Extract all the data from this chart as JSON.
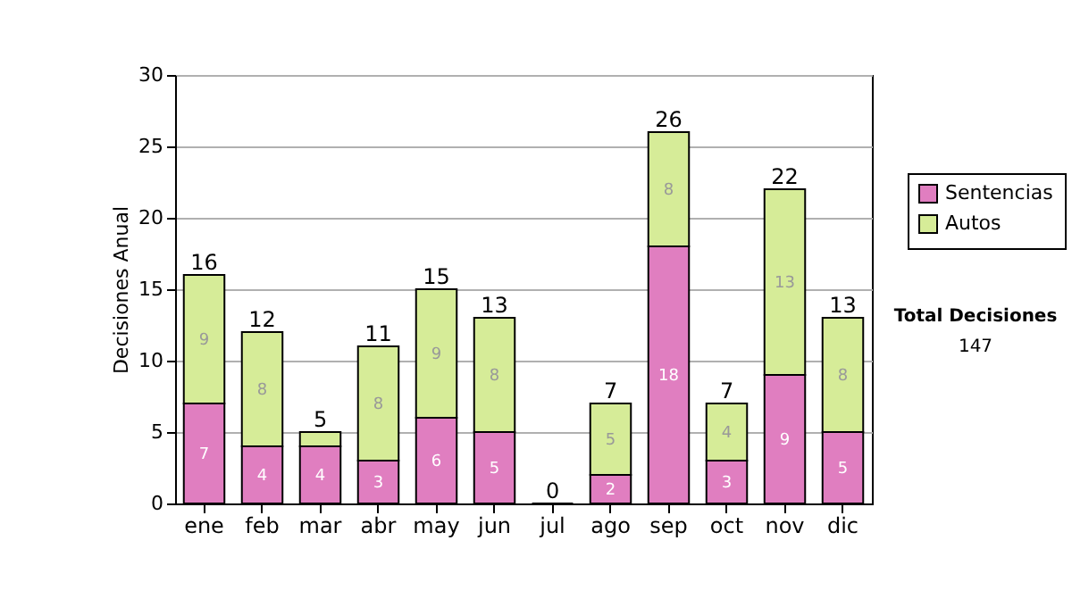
{
  "chart_data": {
    "type": "bar",
    "stacked": true,
    "ylabel": "Decisiones Anual",
    "categories": [
      "ene",
      "feb",
      "mar",
      "abr",
      "may",
      "jun",
      "jul",
      "ago",
      "sep",
      "oct",
      "nov",
      "dic"
    ],
    "series": [
      {
        "name": "Sentencias",
        "color": "#e07ec0",
        "values": [
          7,
          4,
          4,
          3,
          6,
          5,
          0,
          2,
          18,
          3,
          9,
          5
        ],
        "value_labels": [
          "7",
          "4",
          "4",
          "3",
          "6",
          "5",
          null,
          "2",
          "18",
          "3",
          "9",
          "5"
        ]
      },
      {
        "name": "Autos",
        "color": "#d6ec98",
        "values": [
          9,
          8,
          1,
          8,
          9,
          8,
          0,
          5,
          8,
          4,
          13,
          8
        ],
        "value_labels": [
          "9",
          "8",
          null,
          "8",
          "9",
          "8",
          null,
          "5",
          "8",
          "4",
          "13",
          "8"
        ]
      }
    ],
    "totals": [
      "16",
      "12",
      "5",
      "11",
      "15",
      "13",
      "0",
      "7",
      "26",
      "7",
      "22",
      "13"
    ],
    "ylim": [
      0,
      30
    ],
    "yticks": [
      0,
      5,
      10,
      15,
      20,
      25,
      30
    ],
    "grid": "y",
    "legend": "right",
    "annotations": [
      "Total Decisiones",
      "147"
    ]
  }
}
